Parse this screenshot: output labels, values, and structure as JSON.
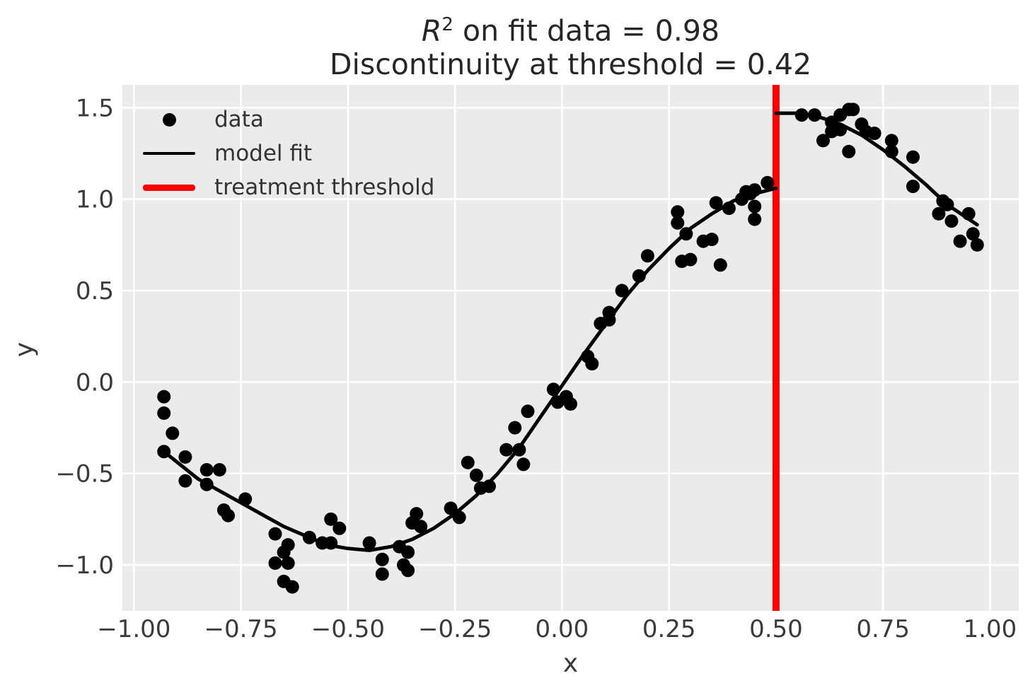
{
  "title": {
    "math_var": "R",
    "math_sup": "2",
    "line1_rest": " on fit data = 0.98",
    "line2": "Discontinuity at threshold = 0.42"
  },
  "axes": {
    "xlabel": "x",
    "ylabel": "y"
  },
  "legend": {
    "entries": [
      {
        "label": "data",
        "marker": "dot",
        "color": "#000000"
      },
      {
        "label": "model fit",
        "marker": "line",
        "color": "#000000"
      },
      {
        "label": "treatment threshold",
        "marker": "thick-line",
        "color": "#ff0000"
      }
    ]
  },
  "chart_data": {
    "type": "scatter",
    "title": "R^2 on fit data = 0.98\nDiscontinuity at threshold = 0.42",
    "xlabel": "x",
    "ylabel": "y",
    "r_squared": 0.98,
    "discontinuity": 0.42,
    "threshold_x": 0.5,
    "grid": true,
    "legend_position": "upper left",
    "xlim": [
      -1.027,
      1.067
    ],
    "ylim": [
      -1.251,
      1.625
    ],
    "xticks": {
      "values": [
        -1.0,
        -0.75,
        -0.5,
        -0.25,
        0.0,
        0.25,
        0.5,
        0.75,
        1.0
      ],
      "labels": [
        "−1.00",
        "−0.75",
        "−0.50",
        "−0.25",
        "0.00",
        "0.25",
        "0.50",
        "0.75",
        "1.00"
      ]
    },
    "yticks": {
      "values": [
        1.5,
        1.0,
        0.5,
        0.0,
        -0.5,
        -1.0
      ],
      "labels": [
        "1.5",
        "1.0",
        "0.5",
        "0.0",
        "−0.5",
        "−1.0"
      ]
    },
    "colors": {
      "plot_bg": "#ebebeb",
      "grid": "#ffffff",
      "points": "#000000",
      "fit": "#000000",
      "threshold": "#ff0000"
    },
    "points": [
      [
        -0.93,
        -0.08
      ],
      [
        -0.93,
        -0.17
      ],
      [
        -0.91,
        -0.28
      ],
      [
        -0.93,
        -0.38
      ],
      [
        -0.88,
        -0.41
      ],
      [
        -0.83,
        -0.48
      ],
      [
        -0.8,
        -0.48
      ],
      [
        -0.88,
        -0.54
      ],
      [
        -0.83,
        -0.56
      ],
      [
        -0.74,
        -0.64
      ],
      [
        -0.79,
        -0.7
      ],
      [
        -0.78,
        -0.73
      ],
      [
        -0.67,
        -0.83
      ],
      [
        -0.59,
        -0.85
      ],
      [
        -0.64,
        -0.89
      ],
      [
        -0.65,
        -0.93
      ],
      [
        -0.67,
        -0.99
      ],
      [
        -0.64,
        -0.99
      ],
      [
        -0.65,
        -1.09
      ],
      [
        -0.63,
        -1.12
      ],
      [
        -0.54,
        -0.75
      ],
      [
        -0.52,
        -0.8
      ],
      [
        -0.56,
        -0.88
      ],
      [
        -0.54,
        -0.88
      ],
      [
        -0.45,
        -0.88
      ],
      [
        -0.38,
        -0.9
      ],
      [
        -0.36,
        -0.93
      ],
      [
        -0.42,
        -0.97
      ],
      [
        -0.37,
        -1.0
      ],
      [
        -0.36,
        -1.03
      ],
      [
        -0.42,
        -1.05
      ],
      [
        -0.34,
        -0.72
      ],
      [
        -0.35,
        -0.77
      ],
      [
        -0.33,
        -0.79
      ],
      [
        -0.26,
        -0.69
      ],
      [
        -0.24,
        -0.74
      ],
      [
        -0.19,
        -0.58
      ],
      [
        -0.17,
        -0.57
      ],
      [
        -0.02,
        -0.04
      ],
      [
        -0.01,
        -0.11
      ],
      [
        0.01,
        -0.08
      ],
      [
        0.02,
        -0.12
      ],
      [
        -0.08,
        -0.16
      ],
      [
        -0.11,
        -0.25
      ],
      [
        -0.13,
        -0.37
      ],
      [
        -0.1,
        -0.37
      ],
      [
        -0.09,
        -0.45
      ],
      [
        -0.22,
        -0.44
      ],
      [
        -0.2,
        -0.51
      ],
      [
        0.18,
        0.58
      ],
      [
        0.14,
        0.5
      ],
      [
        0.11,
        0.38
      ],
      [
        0.11,
        0.34
      ],
      [
        0.09,
        0.32
      ],
      [
        0.06,
        0.14
      ],
      [
        0.07,
        0.1
      ],
      [
        0.2,
        0.69
      ],
      [
        0.27,
        0.93
      ],
      [
        0.27,
        0.87
      ],
      [
        0.29,
        0.81
      ],
      [
        0.28,
        0.66
      ],
      [
        0.3,
        0.67
      ],
      [
        0.37,
        0.64
      ],
      [
        0.33,
        0.77
      ],
      [
        0.35,
        0.78
      ],
      [
        0.36,
        0.98
      ],
      [
        0.39,
        0.95
      ],
      [
        0.42,
        1.0
      ],
      [
        0.43,
        1.04
      ],
      [
        0.44,
        1.03
      ],
      [
        0.45,
        1.05
      ],
      [
        0.45,
        0.96
      ],
      [
        0.45,
        0.89
      ],
      [
        0.48,
        1.09
      ],
      [
        0.56,
        1.46
      ],
      [
        0.59,
        1.46
      ],
      [
        0.63,
        1.42
      ],
      [
        0.65,
        1.46
      ],
      [
        0.67,
        1.49
      ],
      [
        0.68,
        1.49
      ],
      [
        0.63,
        1.37
      ],
      [
        0.65,
        1.38
      ],
      [
        0.61,
        1.32
      ],
      [
        0.7,
        1.41
      ],
      [
        0.71,
        1.37
      ],
      [
        0.73,
        1.36
      ],
      [
        0.67,
        1.26
      ],
      [
        0.77,
        1.32
      ],
      [
        0.77,
        1.26
      ],
      [
        0.82,
        1.23
      ],
      [
        0.82,
        1.07
      ],
      [
        0.89,
        0.99
      ],
      [
        0.9,
        0.97
      ],
      [
        0.88,
        0.92
      ],
      [
        0.91,
        0.88
      ],
      [
        0.95,
        0.92
      ],
      [
        0.96,
        0.81
      ],
      [
        0.93,
        0.77
      ],
      [
        0.97,
        0.75
      ]
    ],
    "fit_segments": [
      {
        "name": "fit below threshold",
        "points": [
          [
            -0.93,
            -0.38
          ],
          [
            -0.85,
            -0.53
          ],
          [
            -0.75,
            -0.66
          ],
          [
            -0.65,
            -0.79
          ],
          [
            -0.55,
            -0.89
          ],
          [
            -0.5,
            -0.91
          ],
          [
            -0.45,
            -0.92
          ],
          [
            -0.4,
            -0.9
          ],
          [
            -0.35,
            -0.86
          ],
          [
            -0.3,
            -0.8
          ],
          [
            -0.25,
            -0.72
          ],
          [
            -0.2,
            -0.62
          ],
          [
            -0.15,
            -0.5
          ],
          [
            -0.1,
            -0.36
          ],
          [
            -0.05,
            -0.19
          ],
          [
            0.0,
            -0.02
          ],
          [
            0.05,
            0.15
          ],
          [
            0.1,
            0.31
          ],
          [
            0.15,
            0.47
          ],
          [
            0.2,
            0.61
          ],
          [
            0.25,
            0.73
          ],
          [
            0.3,
            0.84
          ],
          [
            0.35,
            0.92
          ],
          [
            0.4,
            0.99
          ],
          [
            0.45,
            1.03
          ],
          [
            0.5,
            1.06
          ]
        ]
      },
      {
        "name": "fit above threshold",
        "points": [
          [
            0.5,
            1.47
          ],
          [
            0.55,
            1.47
          ],
          [
            0.6,
            1.45
          ],
          [
            0.65,
            1.41
          ],
          [
            0.7,
            1.35
          ],
          [
            0.75,
            1.27
          ],
          [
            0.8,
            1.18
          ],
          [
            0.85,
            1.08
          ],
          [
            0.9,
            0.97
          ],
          [
            0.97,
            0.86
          ]
        ]
      }
    ]
  }
}
